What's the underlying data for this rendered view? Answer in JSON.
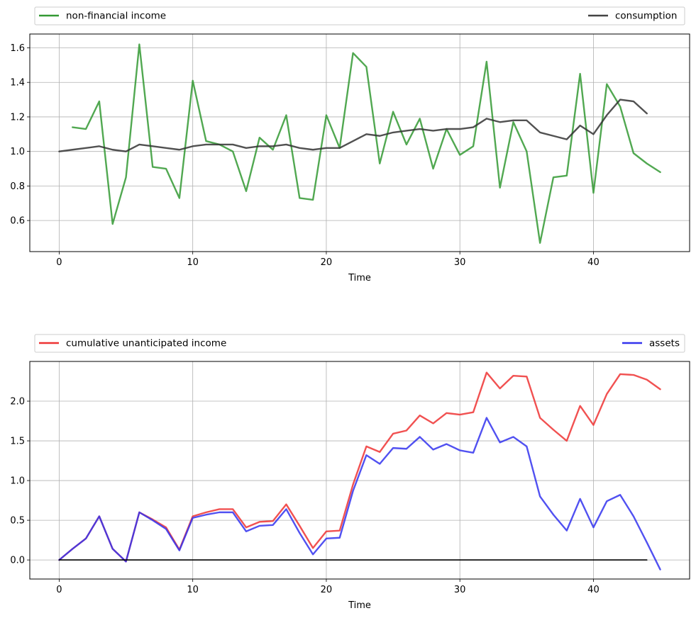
{
  "chart_data": [
    {
      "type": "line",
      "xlabel": "Time",
      "ylabel": "",
      "xlim": [
        -2.2,
        47.2
      ],
      "ylim": [
        0.42,
        1.68
      ],
      "xticks": [
        0,
        10,
        20,
        30,
        40
      ],
      "yticks": [
        0.6,
        0.8,
        1.0,
        1.2,
        1.4,
        1.6
      ],
      "ytick_labels": [
        "0.6",
        "0.8",
        "1.0",
        "1.2",
        "1.4",
        "1.6"
      ],
      "grid": true,
      "legend_position": "top (above plot, entries at left and right)",
      "series": [
        {
          "name": "non-financial income",
          "color": "#339933",
          "x": [
            1,
            2,
            3,
            4,
            5,
            6,
            7,
            8,
            9,
            10,
            11,
            12,
            13,
            14,
            15,
            16,
            17,
            18,
            19,
            20,
            21,
            22,
            23,
            24,
            25,
            26,
            27,
            28,
            29,
            30,
            31,
            32,
            33,
            34,
            35,
            36,
            37,
            38,
            39,
            40,
            41,
            42,
            43,
            44,
            45
          ],
          "values": [
            1.14,
            1.13,
            1.29,
            0.58,
            0.85,
            1.62,
            0.91,
            0.9,
            0.73,
            1.41,
            1.06,
            1.04,
            1.0,
            0.77,
            1.08,
            1.01,
            1.21,
            0.73,
            0.72,
            1.21,
            1.02,
            1.57,
            1.49,
            0.93,
            1.23,
            1.04,
            1.19,
            0.9,
            1.13,
            0.98,
            1.03,
            1.52,
            0.79,
            1.17,
            1.0,
            0.47,
            0.85,
            0.86,
            1.45,
            0.76,
            1.39,
            1.26,
            0.99,
            0.93,
            0.88
          ]
        },
        {
          "name": "consumption",
          "color": "#333333",
          "x": [
            0,
            1,
            2,
            3,
            4,
            5,
            6,
            7,
            8,
            9,
            10,
            11,
            12,
            13,
            14,
            15,
            16,
            17,
            18,
            19,
            20,
            21,
            22,
            23,
            24,
            25,
            26,
            27,
            28,
            29,
            30,
            31,
            32,
            33,
            34,
            35,
            36,
            37,
            38,
            39,
            40,
            41,
            42,
            43,
            44
          ],
          "values": [
            1.0,
            1.01,
            1.02,
            1.03,
            1.01,
            1.0,
            1.04,
            1.03,
            1.02,
            1.01,
            1.03,
            1.04,
            1.04,
            1.04,
            1.02,
            1.03,
            1.03,
            1.04,
            1.02,
            1.01,
            1.02,
            1.02,
            1.06,
            1.1,
            1.09,
            1.11,
            1.12,
            1.13,
            1.12,
            1.13,
            1.13,
            1.14,
            1.19,
            1.17,
            1.18,
            1.18,
            1.11,
            1.09,
            1.07,
            1.15,
            1.1,
            1.21,
            1.3,
            1.29,
            1.22
          ]
        }
      ]
    },
    {
      "type": "line",
      "xlabel": "Time",
      "ylabel": "",
      "xlim": [
        -2.2,
        47.2
      ],
      "ylim": [
        -0.24,
        2.5
      ],
      "xticks": [
        0,
        10,
        20,
        30,
        40
      ],
      "yticks": [
        0.0,
        0.5,
        1.0,
        1.5,
        2.0
      ],
      "ytick_labels": [
        "0.0",
        "0.5",
        "1.0",
        "1.5",
        "2.0"
      ],
      "grid": true,
      "legend_position": "top (above plot, entries at left and right)",
      "series": [
        {
          "name": "cumulative unanticipated income",
          "color": "#ee3333",
          "x": [
            0,
            1,
            2,
            3,
            4,
            5,
            6,
            7,
            8,
            9,
            10,
            11,
            12,
            13,
            14,
            15,
            16,
            17,
            18,
            19,
            20,
            21,
            22,
            23,
            24,
            25,
            26,
            27,
            28,
            29,
            30,
            31,
            32,
            33,
            34,
            35,
            36,
            37,
            38,
            39,
            40,
            41,
            42,
            43,
            44,
            45
          ],
          "values": [
            0.0,
            0.14,
            0.27,
            0.55,
            0.14,
            -0.02,
            0.6,
            0.51,
            0.41,
            0.13,
            0.55,
            0.6,
            0.64,
            0.64,
            0.41,
            0.48,
            0.49,
            0.7,
            0.43,
            0.15,
            0.36,
            0.37,
            0.95,
            1.43,
            1.36,
            1.59,
            1.63,
            1.82,
            1.72,
            1.85,
            1.83,
            1.86,
            2.36,
            2.16,
            2.32,
            2.31,
            1.79,
            1.64,
            1.5,
            1.94,
            1.7,
            2.09,
            2.34,
            2.33,
            2.27,
            2.15
          ]
        },
        {
          "name": "assets",
          "color": "#3333ee",
          "x": [
            0,
            1,
            2,
            3,
            4,
            5,
            6,
            7,
            8,
            9,
            10,
            11,
            12,
            13,
            14,
            15,
            16,
            17,
            18,
            19,
            20,
            21,
            22,
            23,
            24,
            25,
            26,
            27,
            28,
            29,
            30,
            31,
            32,
            33,
            34,
            35,
            36,
            37,
            38,
            39,
            40,
            41,
            42,
            43,
            44,
            45
          ],
          "values": [
            0.0,
            0.14,
            0.27,
            0.55,
            0.14,
            -0.02,
            0.6,
            0.5,
            0.39,
            0.12,
            0.53,
            0.57,
            0.6,
            0.6,
            0.36,
            0.43,
            0.44,
            0.64,
            0.34,
            0.07,
            0.27,
            0.28,
            0.87,
            1.32,
            1.21,
            1.41,
            1.4,
            1.55,
            1.39,
            1.46,
            1.38,
            1.35,
            1.79,
            1.48,
            1.55,
            1.43,
            0.8,
            0.57,
            0.37,
            0.77,
            0.41,
            0.74,
            0.82,
            0.55,
            0.22,
            -0.12
          ]
        },
        {
          "name": "",
          "color": "#000000",
          "x": [
            0,
            44
          ],
          "values": [
            0,
            0
          ]
        }
      ]
    }
  ]
}
